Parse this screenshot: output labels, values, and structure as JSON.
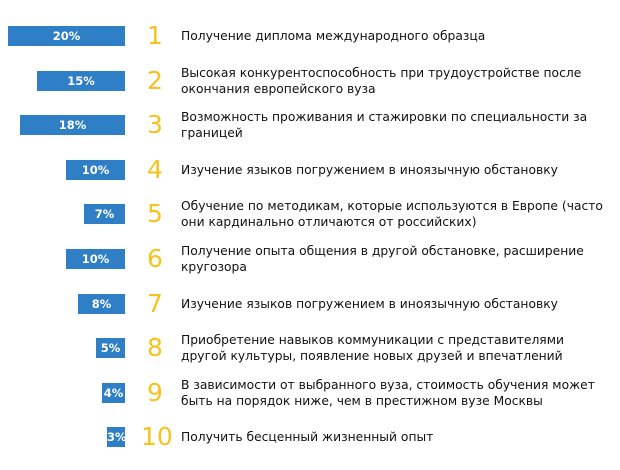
{
  "chart_data": {
    "type": "bar",
    "orientation": "horizontal",
    "unit": "%",
    "items": [
      {
        "rank": "1",
        "value": 20,
        "label": "20%",
        "text": "Получение диплома международного образца"
      },
      {
        "rank": "2",
        "value": 15,
        "label": "15%",
        "text": "Высокая конкурентоспособность при трудоустройстве после окончания европейского вуза"
      },
      {
        "rank": "3",
        "value": 18,
        "label": "18%",
        "text": "Возможность проживания и стажировки по специальности за границей"
      },
      {
        "rank": "4",
        "value": 10,
        "label": "10%",
        "text": "Изучение языков погружением в иноязычную обстановку"
      },
      {
        "rank": "5",
        "value": 7,
        "label": "7%",
        "text": "Обучение по методикам, которые используются в Европе (часто они кардинально отличаются от российских)"
      },
      {
        "rank": "6",
        "value": 10,
        "label": "10%",
        "text": "Получение опыта общения в другой обстановке, расширение кругозора"
      },
      {
        "rank": "7",
        "value": 8,
        "label": "8%",
        "text": "Изучение языков погружением в иноязычную обстановку"
      },
      {
        "rank": "8",
        "value": 5,
        "label": "5%",
        "text": "Приобретение навыков коммуникации с представителями другой культуры, появление новых друзей и впечатлений"
      },
      {
        "rank": "9",
        "value": 4,
        "label": "4%",
        "text": "В зависимости от выбранного вуза, стоимость обучения может быть на порядок ниже, чем в престижном вузе Москвы"
      },
      {
        "rank": "10",
        "value": 3,
        "label": "3%",
        "text": "Получить бесценный жизненный опыт"
      }
    ],
    "colors": {
      "bar": "#2f7fc6",
      "bar_label": "#ffffff",
      "rank": "#f5c31c",
      "text": "#111111"
    }
  }
}
